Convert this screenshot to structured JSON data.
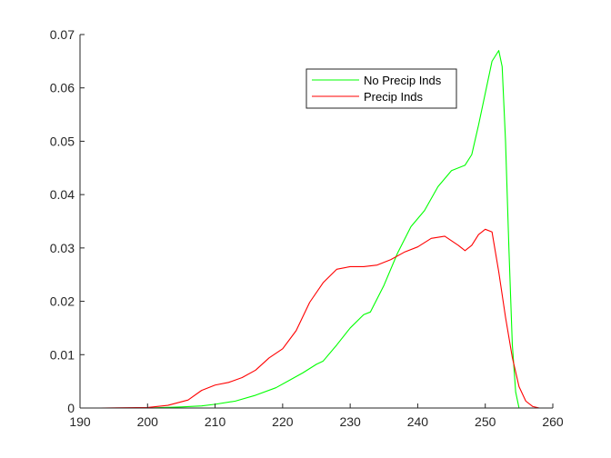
{
  "chart_data": {
    "type": "line",
    "title": "",
    "xlabel": "",
    "ylabel": "",
    "xlim": [
      190,
      260
    ],
    "ylim": [
      0,
      0.07
    ],
    "xticks": [
      190,
      200,
      210,
      220,
      230,
      240,
      250,
      260
    ],
    "yticks": [
      0,
      0.01,
      0.02,
      0.03,
      0.04,
      0.05,
      0.06,
      0.07
    ],
    "xtick_labels": [
      "190",
      "200",
      "210",
      "220",
      "230",
      "240",
      "250",
      "260"
    ],
    "ytick_labels": [
      "0",
      "0.01",
      "0.02",
      "0.03",
      "0.04",
      "0.05",
      "0.06",
      "0.07"
    ],
    "grid": false,
    "legend_position": "top-right",
    "series": [
      {
        "name": "No Precip Inds",
        "color": "#00ff00",
        "x": [
          200,
          205,
          208,
          210,
          213,
          216,
          219,
          221,
          223,
          225,
          226,
          228,
          230,
          232,
          233,
          235,
          237,
          239,
          241,
          243,
          245,
          247,
          248,
          249,
          250,
          251,
          252,
          252.5,
          253,
          253.5,
          254,
          254.5,
          255
        ],
        "y": [
          0,
          0.0002,
          0.0004,
          0.0007,
          0.0013,
          0.0024,
          0.0038,
          0.0052,
          0.0066,
          0.0082,
          0.0088,
          0.0118,
          0.015,
          0.0175,
          0.018,
          0.023,
          0.029,
          0.034,
          0.037,
          0.0415,
          0.0445,
          0.0455,
          0.0475,
          0.053,
          0.059,
          0.065,
          0.067,
          0.064,
          0.05,
          0.03,
          0.012,
          0.003,
          0
        ]
      },
      {
        "name": "Precip Inds",
        "color": "#ff0000",
        "x": [
          193,
          200,
          203,
          206,
          208,
          210,
          212,
          214,
          216,
          218,
          220,
          222,
          224,
          226,
          228,
          230,
          232,
          234,
          236,
          238,
          240,
          242,
          244,
          246,
          247,
          248,
          249,
          250,
          251,
          252,
          253,
          254,
          255,
          256,
          257,
          258
        ],
        "y": [
          0,
          0.0001,
          0.0005,
          0.0015,
          0.0033,
          0.0043,
          0.0048,
          0.0057,
          0.0071,
          0.0094,
          0.0111,
          0.0145,
          0.0198,
          0.0235,
          0.026,
          0.0265,
          0.0265,
          0.0268,
          0.0278,
          0.0292,
          0.0302,
          0.0318,
          0.0322,
          0.0305,
          0.0295,
          0.0305,
          0.0325,
          0.0335,
          0.033,
          0.0255,
          0.017,
          0.0095,
          0.004,
          0.0013,
          0.0003,
          0
        ]
      }
    ]
  }
}
